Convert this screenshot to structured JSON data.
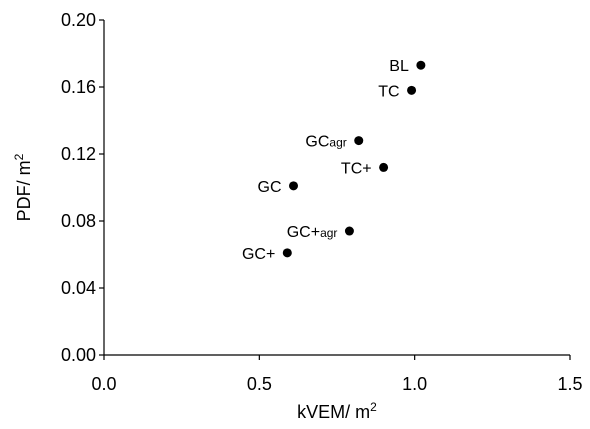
{
  "chart_data": {
    "type": "scatter",
    "xlabel": "kVEM/ m",
    "xlabel_sup": "2",
    "ylabel": "PDF/ m",
    "ylabel_sup": "2",
    "xlim": [
      0,
      1.5
    ],
    "ylim": [
      0,
      0.2
    ],
    "xticks": [
      "0.0",
      "0.5",
      "1.0",
      "1.5"
    ],
    "yticks": [
      "0.00",
      "0.04",
      "0.08",
      "0.12",
      "0.16",
      "0.20"
    ],
    "grid": false,
    "legend": "none",
    "marker_color": "#000000",
    "points": [
      {
        "label": "BL",
        "label_sub": "",
        "x": 1.02,
        "y": 0.173
      },
      {
        "label": "TC",
        "label_sub": "",
        "x": 0.99,
        "y": 0.158
      },
      {
        "label": "GC",
        "label_sub": "agr",
        "x": 0.82,
        "y": 0.128
      },
      {
        "label": "TC+",
        "label_sub": "",
        "x": 0.9,
        "y": 0.112
      },
      {
        "label": "GC",
        "label_sub": "",
        "x": 0.61,
        "y": 0.101
      },
      {
        "label": "GC+",
        "label_sub": "agr",
        "x": 0.79,
        "y": 0.074
      },
      {
        "label": "GC+",
        "label_sub": "",
        "x": 0.59,
        "y": 0.061
      }
    ]
  }
}
